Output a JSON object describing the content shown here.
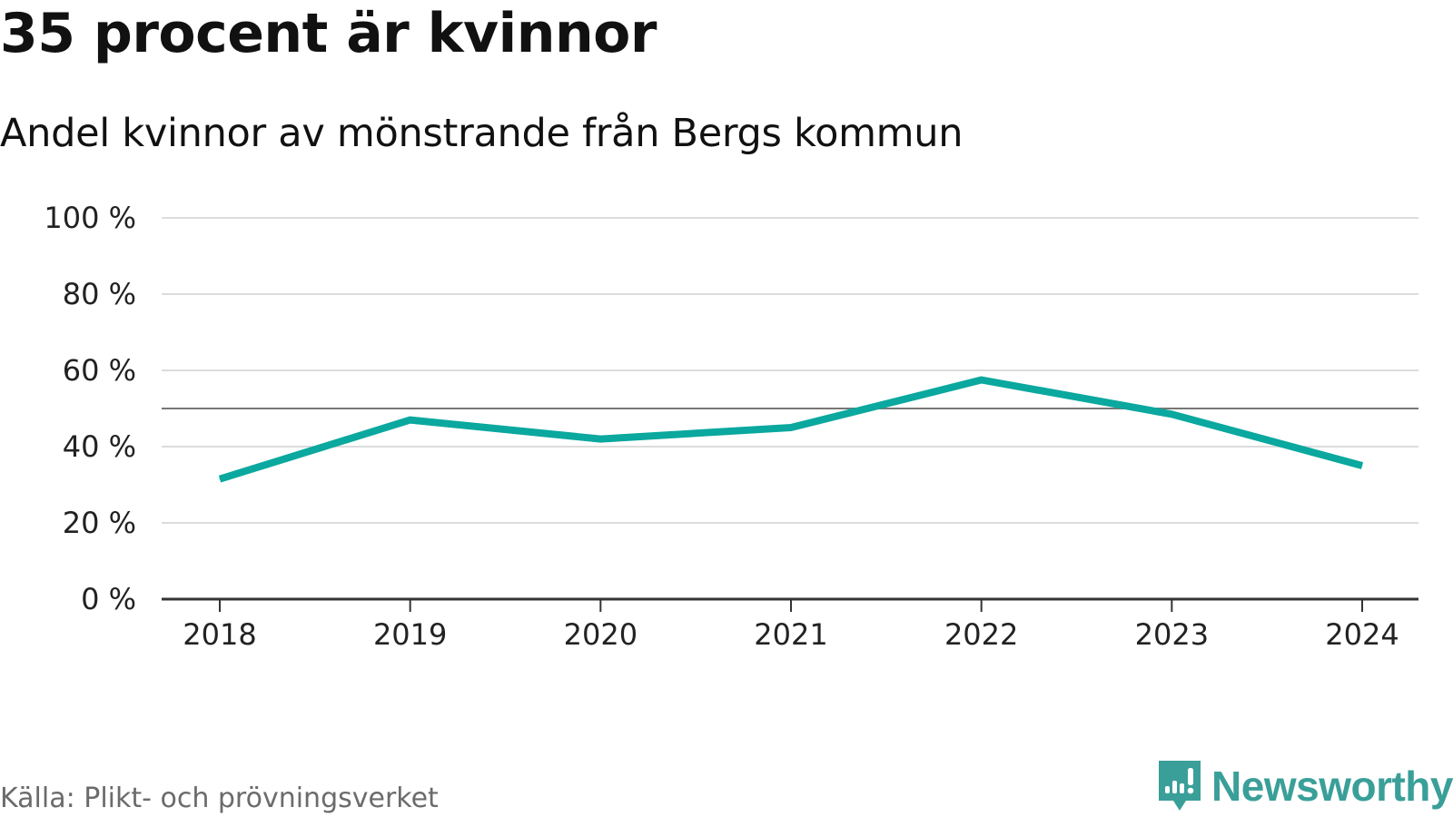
{
  "header": {
    "title": "35 procent är kvinnor",
    "subtitle": "Andel kvinnor av mönstrande från Bergs kommun"
  },
  "chart_data": {
    "type": "line",
    "title": "35 procent är kvinnor",
    "subtitle": "Andel kvinnor av mönstrande från Bergs kommun",
    "x": [
      "2018",
      "2019",
      "2020",
      "2021",
      "2022",
      "2023",
      "2024"
    ],
    "series": [
      {
        "name": "Andel kvinnor",
        "values": [
          31.5,
          47,
          42,
          45,
          57.5,
          48.5,
          35
        ],
        "color": "#0aa89e"
      }
    ],
    "reference_line": {
      "value": 50,
      "color": "#777777"
    },
    "y_ticks": [
      0,
      20,
      40,
      60,
      80,
      100
    ],
    "y_tick_labels": [
      "0 %",
      "20 %",
      "40 %",
      "60 %",
      "80 %",
      "100 %"
    ],
    "ylim": [
      0,
      100
    ],
    "xlabel": "",
    "ylabel": "",
    "grid": true,
    "legend": "none"
  },
  "footer": {
    "source": "Källa: Plikt- och prövningsverket",
    "brand": "Newsworthy",
    "brand_color": "#3a9f99",
    "logo_icon": "newsworthy-logo-icon"
  }
}
